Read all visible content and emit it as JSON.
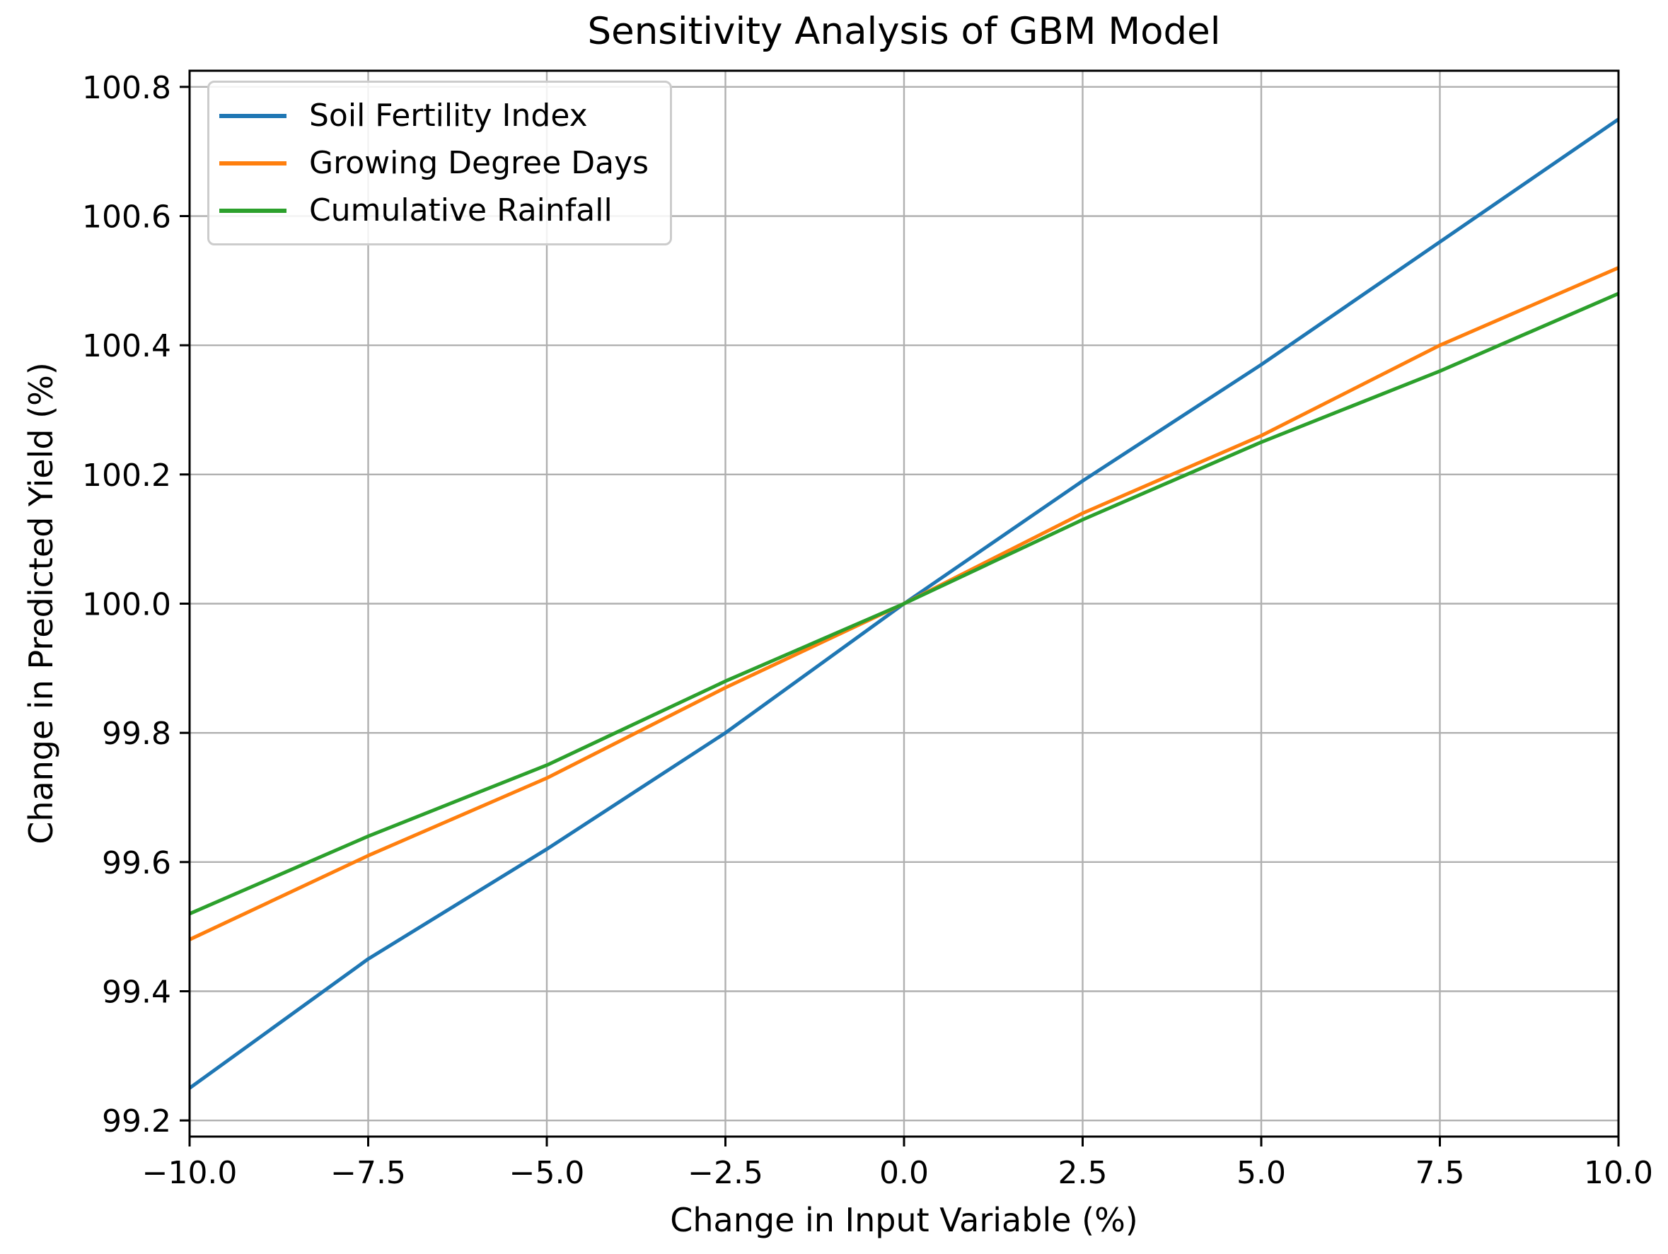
{
  "chart_data": {
    "type": "line",
    "title": "Sensitivity Analysis of GBM Model",
    "xlabel": "Change in Input Variable (%)",
    "ylabel": "Change in Predicted Yield (%)",
    "x": [
      -10,
      -7.5,
      -5,
      -2.5,
      0,
      2.5,
      5,
      7.5,
      10
    ],
    "series": [
      {
        "name": "Soil Fertility Index",
        "color": "#1f77b4",
        "values": [
          99.25,
          99.45,
          99.62,
          99.8,
          100.0,
          100.19,
          100.37,
          100.56,
          100.75
        ]
      },
      {
        "name": "Growing Degree Days",
        "color": "#ff7f0e",
        "values": [
          99.48,
          99.61,
          99.73,
          99.87,
          100.0,
          100.14,
          100.26,
          100.4,
          100.52
        ]
      },
      {
        "name": "Cumulative Rainfall",
        "color": "#2ca02c",
        "values": [
          99.52,
          99.64,
          99.75,
          99.88,
          100.0,
          100.13,
          100.25,
          100.36,
          100.48
        ]
      }
    ],
    "xlim": [
      -10,
      10
    ],
    "ylim": [
      99.175,
      100.825
    ],
    "x_tick_values": [
      -10,
      -7.5,
      -5,
      -2.5,
      0,
      2.5,
      5,
      7.5,
      10
    ],
    "x_tick_labels": [
      "−10.0",
      "−7.5",
      "−5.0",
      "−2.5",
      "0.0",
      "2.5",
      "5.0",
      "7.5",
      "10.0"
    ],
    "y_tick_values": [
      99.2,
      99.4,
      99.6,
      99.8,
      100.0,
      100.2,
      100.4,
      100.6,
      100.8
    ],
    "y_tick_labels": [
      "99.2",
      "99.4",
      "99.6",
      "99.8",
      "100.0",
      "100.2",
      "100.4",
      "100.6",
      "100.8"
    ],
    "grid": true,
    "grid_color": "#b0b0b0",
    "spine_color": "#000000",
    "legend_position": "upper left"
  }
}
